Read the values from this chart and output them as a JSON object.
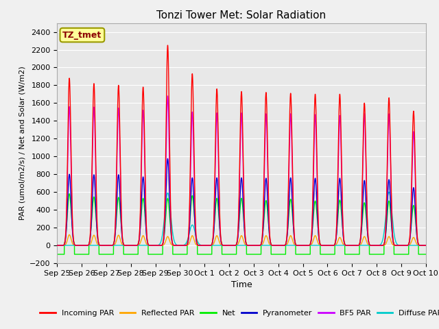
{
  "title": "Tonzi Tower Met: Solar Radiation",
  "ylabel": "PAR (umol/m2/s) / Net and Solar (W/m2)",
  "xlabel": "Time",
  "ylim": [
    -200,
    2500
  ],
  "yticks": [
    -200,
    0,
    200,
    400,
    600,
    800,
    1000,
    1200,
    1400,
    1600,
    1800,
    2000,
    2200,
    2400
  ],
  "annotation_text": "TZ_tmet",
  "annotation_color": "#8B0000",
  "annotation_bg": "#FFFF99",
  "annotation_edge": "#999900",
  "fig_bg": "#F0F0F0",
  "plot_bg": "#E8E8E8",
  "grid_color": "#FFFFFF",
  "series": {
    "incoming_par": {
      "label": "Incoming PAR",
      "color": "#FF0000"
    },
    "reflected_par": {
      "label": "Reflected PAR",
      "color": "#FFA500"
    },
    "net": {
      "label": "Net",
      "color": "#00EE00"
    },
    "pyranometer": {
      "label": "Pyranometer",
      "color": "#0000CC"
    },
    "bf5_par": {
      "label": "BF5 PAR",
      "color": "#CC00FF"
    },
    "diffuse_par": {
      "label": "Diffuse PAR",
      "color": "#00CCCC"
    }
  },
  "tick_labels": [
    "Sep 25",
    "Sep 26",
    "Sep 27",
    "Sep 28",
    "Sep 29",
    "Sep 30",
    "Oct 1",
    "Oct 2",
    "Oct 3",
    "Oct 4",
    "Oct 5",
    "Oct 6",
    "Oct 7",
    "Oct 8",
    "Oct 9",
    "Oct 10"
  ],
  "num_days": 15,
  "day_peaks": {
    "incoming_par": [
      1880,
      1820,
      1800,
      1780,
      2250,
      1930,
      1760,
      1730,
      1720,
      1710,
      1700,
      1700,
      1600,
      1660,
      1510
    ],
    "reflected_par": [
      120,
      115,
      115,
      110,
      100,
      110,
      110,
      110,
      110,
      110,
      110,
      90,
      100,
      100,
      90
    ],
    "net": [
      580,
      545,
      540,
      530,
      530,
      560,
      530,
      530,
      505,
      520,
      500,
      510,
      480,
      500,
      450
    ],
    "pyranometer": [
      800,
      795,
      795,
      770,
      975,
      760,
      760,
      760,
      755,
      760,
      755,
      755,
      730,
      740,
      650
    ],
    "bf5_par": [
      1560,
      1555,
      1545,
      1520,
      1680,
      1500,
      1490,
      1490,
      1480,
      1480,
      1470,
      1460,
      1480,
      1480,
      1280
    ],
    "diffuse_par": [
      0,
      0,
      0,
      0,
      590,
      230,
      0,
      0,
      0,
      0,
      0,
      0,
      0,
      600,
      0
    ]
  },
  "net_night": -100,
  "lw": 1.0,
  "title_fontsize": 11,
  "tick_fontsize": 8,
  "ylabel_fontsize": 8,
  "xlabel_fontsize": 9,
  "legend_fontsize": 8
}
